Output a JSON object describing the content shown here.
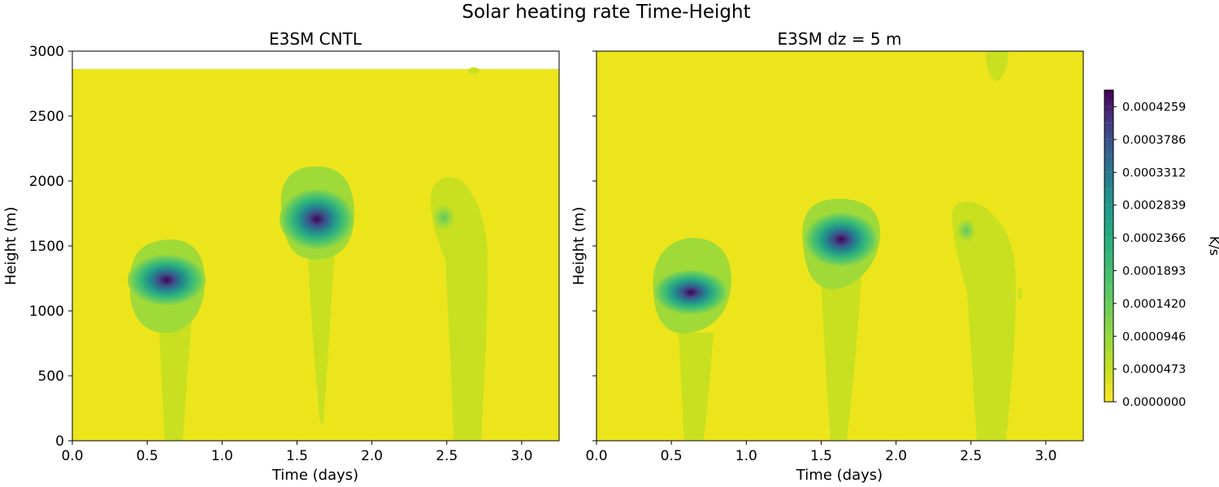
{
  "suptitle": "Solar heating rate Time-Height",
  "colors": {
    "yellow": "#ece51b",
    "light_green": "#c8e020",
    "green": "#a0da39",
    "mid_green": "#5ec962",
    "teal_green": "#35b779",
    "teal": "#21918c",
    "blue_teal": "#2c728e",
    "blue": "#3b528b",
    "indigo": "#472d7b",
    "purple": "#440154"
  },
  "chart_data": [
    {
      "type": "heatmap",
      "title": "E3SM CNTL",
      "xlabel": "Time (days)",
      "ylabel": "Height (m)",
      "xlim": [
        0,
        3.25
      ],
      "ylim": [
        0,
        3000
      ],
      "xticks": [
        "0.0",
        "0.5",
        "1.0",
        "1.5",
        "2.0",
        "2.5",
        "3.0"
      ],
      "yticks": [
        "0",
        "500",
        "1000",
        "1500",
        "2000",
        "2500",
        "3000"
      ],
      "data_top": 2860,
      "features": [
        {
          "day": 0.6,
          "center_height": 1240,
          "peak": 0.0004,
          "top": 1550,
          "base": 0
        },
        {
          "day": 1.65,
          "center_height": 1700,
          "peak": 0.00042,
          "top": 2100,
          "base": 120
        },
        {
          "day": 2.5,
          "center_height": 1720,
          "peak": 0.0001,
          "top": 2050,
          "base": 0
        },
        {
          "day": 2.67,
          "center_height": 2860,
          "peak": 6e-05,
          "top": 2860,
          "base": 2820
        }
      ]
    },
    {
      "type": "heatmap",
      "title": "E3SM dz = 5 m",
      "xlabel": "Time (days)",
      "ylabel": "Height (m)",
      "xlim": [
        0,
        3.25
      ],
      "ylim": [
        0,
        3000
      ],
      "xticks": [
        "0.0",
        "0.5",
        "1.0",
        "1.5",
        "2.0",
        "2.5",
        "3.0"
      ],
      "yticks": [
        "0",
        "500",
        "1000",
        "1500",
        "2000",
        "2500",
        "3000"
      ],
      "data_top": 3000,
      "features": [
        {
          "day": 0.65,
          "center_height": 1130,
          "peak": 0.00045,
          "top": 1550,
          "base": 0
        },
        {
          "day": 1.62,
          "center_height": 1540,
          "peak": 0.0004,
          "top": 1850,
          "base": 0
        },
        {
          "day": 2.47,
          "center_height": 1600,
          "peak": 0.00012,
          "top": 1840,
          "base": 0
        },
        {
          "day": 2.67,
          "center_height": 2900,
          "peak": 6e-05,
          "top": 3000,
          "base": 2800
        }
      ]
    }
  ],
  "colorbar": {
    "label": "K/s",
    "range": [
      0,
      0.00045
    ],
    "ticks": [
      "0.0000000",
      "0.0000473",
      "0.0000946",
      "0.0001420",
      "0.0001893",
      "0.0002366",
      "0.0002839",
      "0.0003312",
      "0.0003786",
      "0.0004259"
    ],
    "tick_values": [
      0,
      4.73e-05,
      9.46e-05,
      0.000142,
      0.0001893,
      0.0002366,
      0.0002839,
      0.0003312,
      0.0003786,
      0.0004259
    ],
    "levels": 19
  }
}
